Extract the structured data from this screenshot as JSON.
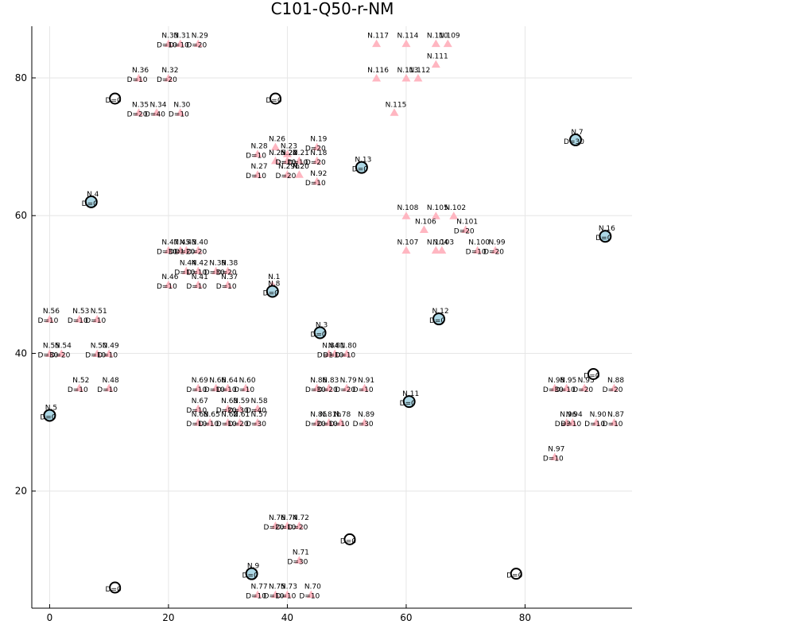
{
  "chart_data": {
    "type": "scatter",
    "title": "C101-Q50-r-NM",
    "xlabel": "",
    "ylabel": "",
    "xlim": [
      -3,
      98
    ],
    "ylim": [
      3,
      87.5
    ],
    "xticks": [
      0,
      20,
      40,
      60,
      80
    ],
    "yticks": [
      20,
      40,
      60,
      80
    ],
    "grid": true,
    "legend": "none",
    "colors": {
      "customer": "#ffb6c1",
      "depot": "#add8e6",
      "depot_stroke": "#000000",
      "station": "#ffffff"
    },
    "customers": [
      {
        "id": "N.1",
        "x": 37.5,
        "y": 50,
        "d": ""
      },
      {
        "id": "N.33",
        "x": 20,
        "y": 85,
        "d": "D=10"
      },
      {
        "id": "N.31",
        "x": 22,
        "y": 85,
        "d": "D=10"
      },
      {
        "id": "N.29",
        "x": 25,
        "y": 85,
        "d": "D=20"
      },
      {
        "id": "N.36",
        "x": 15,
        "y": 80,
        "d": "D=10"
      },
      {
        "id": "N.32",
        "x": 20,
        "y": 80,
        "d": "D=20"
      },
      {
        "id": "N.35",
        "x": 15,
        "y": 75,
        "d": "D=20"
      },
      {
        "id": "N.34",
        "x": 18,
        "y": 75,
        "d": "D=40"
      },
      {
        "id": "N.30",
        "x": 22,
        "y": 75,
        "d": "D=10"
      },
      {
        "id": "N.117",
        "x": 55,
        "y": 85,
        "d": ""
      },
      {
        "id": "N.114",
        "x": 60,
        "y": 85,
        "d": ""
      },
      {
        "id": "N.110",
        "x": 65,
        "y": 85,
        "d": ""
      },
      {
        "id": "N.109",
        "x": 67,
        "y": 85,
        "d": ""
      },
      {
        "id": "N.111",
        "x": 65,
        "y": 82,
        "d": ""
      },
      {
        "id": "N.116",
        "x": 55,
        "y": 80,
        "d": ""
      },
      {
        "id": "N.113",
        "x": 60,
        "y": 80,
        "d": ""
      },
      {
        "id": "N.112",
        "x": 62,
        "y": 80,
        "d": ""
      },
      {
        "id": "N.115",
        "x": 58,
        "y": 75,
        "d": ""
      },
      {
        "id": "N.26",
        "x": 38,
        "y": 70,
        "d": ""
      },
      {
        "id": "N.23",
        "x": 40,
        "y": 69,
        "d": ""
      },
      {
        "id": "N.28",
        "x": 35,
        "y": 69,
        "d": "D=10"
      },
      {
        "id": "N.25",
        "x": 38,
        "y": 68,
        "d": ""
      },
      {
        "id": "N.24",
        "x": 40,
        "y": 68,
        "d": "D=20"
      },
      {
        "id": "N.19",
        "x": 45,
        "y": 70,
        "d": "D=20"
      },
      {
        "id": "N.22",
        "x": 40,
        "y": 68,
        "d": "D=10"
      },
      {
        "id": "N.21",
        "x": 42,
        "y": 68,
        "d": "D=10"
      },
      {
        "id": "N.18",
        "x": 45,
        "y": 68,
        "d": "D=20"
      },
      {
        "id": "N.27",
        "x": 35,
        "y": 66,
        "d": "D=10"
      },
      {
        "id": "N.20",
        "x": 42,
        "y": 66,
        "d": ""
      },
      {
        "id": "N.29b",
        "x": 40,
        "y": 66,
        "d": "D=20"
      },
      {
        "id": "N.92",
        "x": 45,
        "y": 65,
        "d": "D=10"
      },
      {
        "id": "N.108",
        "x": 60,
        "y": 60,
        "d": ""
      },
      {
        "id": "N.105",
        "x": 65,
        "y": 60,
        "d": ""
      },
      {
        "id": "N.102",
        "x": 68,
        "y": 60,
        "d": ""
      },
      {
        "id": "N.106",
        "x": 63,
        "y": 58,
        "d": ""
      },
      {
        "id": "N.101",
        "x": 70,
        "y": 58,
        "d": "D=20"
      },
      {
        "id": "N.107",
        "x": 60,
        "y": 55,
        "d": ""
      },
      {
        "id": "N.104",
        "x": 65,
        "y": 55,
        "d": ""
      },
      {
        "id": "N.103",
        "x": 66,
        "y": 55,
        "d": ""
      },
      {
        "id": "N.100",
        "x": 72,
        "y": 55,
        "d": "D=10"
      },
      {
        "id": "N.99",
        "x": 75,
        "y": 55,
        "d": "D=20"
      },
      {
        "id": "N.47",
        "x": 20,
        "y": 55,
        "d": "D=30"
      },
      {
        "id": "N.45",
        "x": 22,
        "y": 55,
        "d": "D=10"
      },
      {
        "id": "N.43",
        "x": 23,
        "y": 55,
        "d": "D=20"
      },
      {
        "id": "N.40",
        "x": 25,
        "y": 55,
        "d": "D=20"
      },
      {
        "id": "N.44",
        "x": 23,
        "y": 52,
        "d": "D=10"
      },
      {
        "id": "N.42",
        "x": 25,
        "y": 52,
        "d": "D=10"
      },
      {
        "id": "N.39",
        "x": 28,
        "y": 52,
        "d": "D=30"
      },
      {
        "id": "N.38",
        "x": 30,
        "y": 52,
        "d": "D=20"
      },
      {
        "id": "N.46",
        "x": 20,
        "y": 50,
        "d": "D=10"
      },
      {
        "id": "N.41",
        "x": 25,
        "y": 50,
        "d": "D=10"
      },
      {
        "id": "N.37",
        "x": 30,
        "y": 50,
        "d": "D=10"
      },
      {
        "id": "N.56",
        "x": 0,
        "y": 45,
        "d": "D=10"
      },
      {
        "id": "N.53",
        "x": 5,
        "y": 45,
        "d": "D=10"
      },
      {
        "id": "N.51",
        "x": 8,
        "y": 45,
        "d": "D=10"
      },
      {
        "id": "N.55",
        "x": 0,
        "y": 40,
        "d": "D=30"
      },
      {
        "id": "N.54",
        "x": 2,
        "y": 40,
        "d": "D=20"
      },
      {
        "id": "N.50",
        "x": 8,
        "y": 40,
        "d": "D=10"
      },
      {
        "id": "N.49",
        "x": 10,
        "y": 40,
        "d": "D=10"
      },
      {
        "id": "N.84",
        "x": 47,
        "y": 40,
        "d": "D=10"
      },
      {
        "id": "N.81",
        "x": 48,
        "y": 40,
        "d": "D=10"
      },
      {
        "id": "N.80",
        "x": 50,
        "y": 40,
        "d": "D=10"
      },
      {
        "id": "N.52",
        "x": 5,
        "y": 35,
        "d": "D=10"
      },
      {
        "id": "N.48",
        "x": 10,
        "y": 35,
        "d": "D=10"
      },
      {
        "id": "N.69",
        "x": 25,
        "y": 35,
        "d": "D=10"
      },
      {
        "id": "N.66",
        "x": 28,
        "y": 35,
        "d": "D=10"
      },
      {
        "id": "N.64",
        "x": 30,
        "y": 35,
        "d": "D=10"
      },
      {
        "id": "N.60",
        "x": 33,
        "y": 35,
        "d": "D=10"
      },
      {
        "id": "N.86",
        "x": 45,
        "y": 35,
        "d": "D=30"
      },
      {
        "id": "N.83",
        "x": 47,
        "y": 35,
        "d": "D=20"
      },
      {
        "id": "N.79",
        "x": 50,
        "y": 35,
        "d": "D=20"
      },
      {
        "id": "N.91",
        "x": 53,
        "y": 35,
        "d": "D=10"
      },
      {
        "id": "N.67",
        "x": 25,
        "y": 32,
        "d": "D=10"
      },
      {
        "id": "N.63",
        "x": 30,
        "y": 32,
        "d": "D=20"
      },
      {
        "id": "N.59",
        "x": 32,
        "y": 32,
        "d": "D=30"
      },
      {
        "id": "N.58",
        "x": 35,
        "y": 32,
        "d": "D=40"
      },
      {
        "id": "N.68",
        "x": 25,
        "y": 30,
        "d": "D=10"
      },
      {
        "id": "N.65",
        "x": 27,
        "y": 30,
        "d": "D=10"
      },
      {
        "id": "N.62",
        "x": 30,
        "y": 30,
        "d": "D=10"
      },
      {
        "id": "N.61",
        "x": 32,
        "y": 30,
        "d": "D=20"
      },
      {
        "id": "N.57",
        "x": 35,
        "y": 30,
        "d": "D=30"
      },
      {
        "id": "N.85",
        "x": 45,
        "y": 30,
        "d": "D=20"
      },
      {
        "id": "N.81b",
        "x": 47,
        "y": 30,
        "d": "D=10"
      },
      {
        "id": "N.78",
        "x": 49,
        "y": 30,
        "d": "D=10"
      },
      {
        "id": "N.89",
        "x": 53,
        "y": 30,
        "d": "D=30"
      },
      {
        "id": "N.98",
        "x": 85,
        "y": 35,
        "d": "D=30"
      },
      {
        "id": "N.95",
        "x": 87,
        "y": 35,
        "d": "D=10"
      },
      {
        "id": "N.93",
        "x": 90,
        "y": 35,
        "d": "D=20"
      },
      {
        "id": "N.88",
        "x": 95,
        "y": 35,
        "d": "D=20"
      },
      {
        "id": "N.96",
        "x": 87,
        "y": 30,
        "d": "D=30"
      },
      {
        "id": "N.94",
        "x": 88,
        "y": 30,
        "d": "D=10"
      },
      {
        "id": "N.90",
        "x": 92,
        "y": 30,
        "d": "D=10"
      },
      {
        "id": "N.87",
        "x": 95,
        "y": 30,
        "d": "D=10"
      },
      {
        "id": "N.97",
        "x": 85,
        "y": 25,
        "d": "D=10"
      },
      {
        "id": "N.76",
        "x": 38,
        "y": 15,
        "d": "D=20"
      },
      {
        "id": "N.74",
        "x": 40,
        "y": 15,
        "d": "D=10"
      },
      {
        "id": "N.72",
        "x": 42,
        "y": 15,
        "d": "D=20"
      },
      {
        "id": "N.71",
        "x": 42,
        "y": 10,
        "d": "D=30"
      },
      {
        "id": "N.77",
        "x": 35,
        "y": 5,
        "d": "D=10"
      },
      {
        "id": "N.75",
        "x": 38,
        "y": 5,
        "d": "D=10"
      },
      {
        "id": "N.73",
        "x": 40,
        "y": 5,
        "d": "D=10"
      },
      {
        "id": "N.70",
        "x": 44,
        "y": 5,
        "d": "D=10"
      }
    ],
    "stations": [
      {
        "id": "S.1",
        "x": 11,
        "y": 77,
        "d": "D=0"
      },
      {
        "id": "S.2",
        "x": 38,
        "y": 77,
        "d": "D=0"
      },
      {
        "id": "S.3",
        "x": 91.5,
        "y": 37,
        "d": "D=0"
      },
      {
        "id": "S.4",
        "x": 50.5,
        "y": 13,
        "d": "D=0"
      },
      {
        "id": "S.5",
        "x": 78.5,
        "y": 8,
        "d": "D=0"
      },
      {
        "id": "S.6",
        "x": 11,
        "y": 6,
        "d": "D=0"
      }
    ],
    "depots": [
      {
        "id": "N.7",
        "x": 88.5,
        "y": 71,
        "d": "D=30"
      },
      {
        "id": "N.13",
        "x": 52.5,
        "y": 67,
        "d": "D=0"
      },
      {
        "id": "N.4",
        "x": 7,
        "y": 62,
        "d": "D=0"
      },
      {
        "id": "N.16",
        "x": 93.5,
        "y": 57,
        "d": "D=0"
      },
      {
        "id": "N.8",
        "x": 37.5,
        "y": 49,
        "d": "D=0"
      },
      {
        "id": "N.12",
        "x": 65.5,
        "y": 45,
        "d": "D=0"
      },
      {
        "id": "N.3",
        "x": 45.5,
        "y": 43,
        "d": "D=0"
      },
      {
        "id": "N.11",
        "x": 60.5,
        "y": 33,
        "d": "D=0"
      },
      {
        "id": "N.5",
        "x": 0,
        "y": 31,
        "d": "D=0"
      },
      {
        "id": "N.9",
        "x": 34,
        "y": 8,
        "d": "D=0"
      }
    ]
  }
}
